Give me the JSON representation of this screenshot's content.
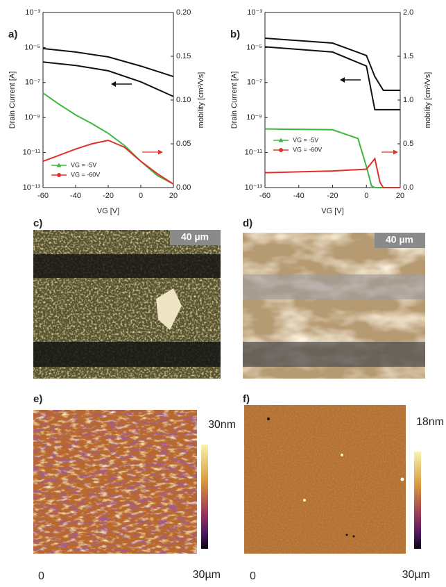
{
  "chart_data": [
    {
      "type": "line",
      "label": "a)",
      "ylabel": "Drain Current [A]",
      "y2label": "mobility [cm²/Vs]",
      "xlabel": "VG [V]",
      "xlim": [
        -60,
        20
      ],
      "xticks": [
        -60,
        -40,
        -20,
        0,
        20
      ],
      "ylim": [
        1e-13,
        0.001
      ],
      "yscale": "log",
      "yticks": [
        {
          "value": 0.001,
          "label": "10⁻³"
        },
        {
          "value": 1e-05,
          "label": "10⁻⁵"
        },
        {
          "value": 1e-07,
          "label": "10⁻⁷"
        },
        {
          "value": 1e-09,
          "label": "10⁻⁹"
        },
        {
          "value": 1e-11,
          "label": "10⁻¹¹"
        },
        {
          "value": 1e-13,
          "label": "10⁻¹³"
        }
      ],
      "y2lim": [
        0,
        0.2
      ],
      "y2ticks": [
        {
          "value": 0,
          "label": "0.00"
        },
        {
          "value": 0.05,
          "label": "0.05"
        },
        {
          "value": 0.1,
          "label": "0.10"
        },
        {
          "value": 0.15,
          "label": "0.15"
        },
        {
          "value": 0.2,
          "label": "0.20"
        }
      ],
      "legend": "lower left",
      "series": [
        {
          "color": "#111111",
          "x": [
            -60,
            -40,
            -20,
            0,
            20
          ],
          "values": [
            8.7e-06,
            5.5e-06,
            2.9e-06,
            8.7e-07,
            2.2e-07
          ]
        },
        {
          "color": "#111111",
          "x": [
            -60,
            -40,
            -20,
            0,
            20
          ],
          "values": [
            1.5e-06,
            9.5e-07,
            4.7e-07,
            1.1e-07,
            1.6e-08
          ]
        },
        {
          "name": "VG = -5V",
          "color": "#3cb83c",
          "axis": "y2",
          "marker": "triangle",
          "x": [
            -60,
            -50,
            -40,
            -30,
            -20,
            -10,
            0,
            10,
            20
          ],
          "values": [
            0.108,
            0.095,
            0.083,
            0.073,
            0.062,
            0.048,
            0.03,
            0.014,
            0.004
          ]
        },
        {
          "name": "VG = -60V",
          "color": "#e0302a",
          "axis": "y2",
          "marker": "circle",
          "x": [
            -60,
            -50,
            -40,
            -30,
            -20,
            -10,
            0,
            10,
            20
          ],
          "values": [
            0.03,
            0.037,
            0.044,
            0.05,
            0.054,
            0.046,
            0.03,
            0.016,
            0.004
          ]
        }
      ]
    },
    {
      "type": "line",
      "label": "b)",
      "ylabel": "Drain Current [A]",
      "y2label": "mobility [cm²/Vs]",
      "xlabel": "VG [V]",
      "xlim": [
        -60,
        20
      ],
      "xticks": [
        -60,
        -40,
        -20,
        0,
        20
      ],
      "ylim": [
        1e-13,
        0.001
      ],
      "yscale": "log",
      "yticks": [
        {
          "value": 0.001,
          "label": "10⁻³"
        },
        {
          "value": 1e-05,
          "label": "10⁻⁵"
        },
        {
          "value": 1e-07,
          "label": "10⁻⁷"
        },
        {
          "value": 1e-09,
          "label": "10⁻⁹"
        },
        {
          "value": 1e-11,
          "label": "10⁻¹¹"
        },
        {
          "value": 1e-13,
          "label": "10⁻¹³"
        }
      ],
      "y2lim": [
        0,
        2
      ],
      "y2ticks": [
        {
          "value": 0,
          "label": "0.0"
        },
        {
          "value": 0.5,
          "label": "0.5"
        },
        {
          "value": 1,
          "label": "1.0"
        },
        {
          "value": 1.5,
          "label": "1.5"
        },
        {
          "value": 2,
          "label": "2.0"
        }
      ],
      "legend": "center left",
      "series": [
        {
          "color": "#111111",
          "x": [
            -60,
            -20,
            0,
            5,
            10,
            20
          ],
          "values": [
            3.4e-05,
            1.8e-05,
            3.5e-06,
            2.2e-07,
            3.6e-08,
            3.6e-08
          ]
        },
        {
          "color": "#111111",
          "x": [
            -60,
            -20,
            0,
            5,
            10,
            20
          ],
          "values": [
            1.1e-05,
            5.5e-06,
            8.7e-07,
            2.8e-09,
            2.8e-09,
            2.8e-09
          ]
        },
        {
          "name": "VG = -5V",
          "color": "#3cb83c",
          "axis": "y2",
          "marker": "triangle",
          "x": [
            -60,
            -20,
            -5,
            0,
            3,
            5,
            20
          ],
          "values": [
            0.67,
            0.66,
            0.56,
            0.24,
            0.02,
            0,
            0
          ]
        },
        {
          "name": "VG = -60V",
          "color": "#e0302a",
          "axis": "y2",
          "marker": "circle",
          "x": [
            -60,
            -20,
            0,
            5,
            8,
            10,
            20
          ],
          "values": [
            0.17,
            0.19,
            0.21,
            0.33,
            0.06,
            0,
            0
          ]
        }
      ]
    }
  ],
  "panels": [
    {
      "label": "c)",
      "scale_bar": "40 µm"
    },
    {
      "label": "d)",
      "scale_bar": "40 µm"
    },
    {
      "label": "e)",
      "colorbar_max": "30nm",
      "x_start": "0",
      "x_end": "30µm"
    },
    {
      "label": "f)",
      "colorbar_max": "18nm",
      "x_start": "0",
      "x_end": "30µm"
    }
  ]
}
